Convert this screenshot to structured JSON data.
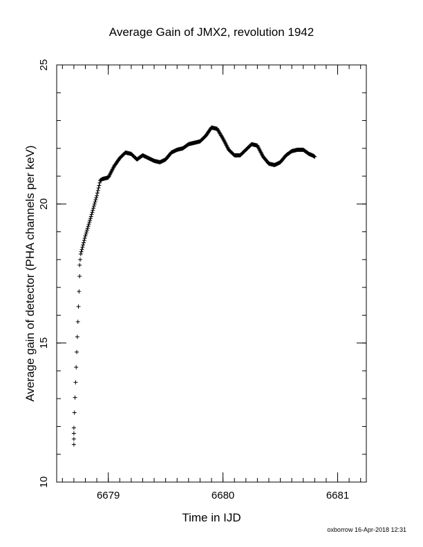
{
  "chart_data": {
    "type": "scatter",
    "title": "Average Gain of JMX2, revolution 1942",
    "xlabel": "Time in IJD",
    "ylabel": "Average gain of detector (PHA channels per keV)",
    "xlim": [
      6678.55,
      6681.25
    ],
    "ylim": [
      10,
      25
    ],
    "xticks": [
      6679,
      6680,
      6681
    ],
    "xtick_labels": [
      "6679",
      "6680",
      "6681"
    ],
    "xticks_minor_step": 0.1,
    "yticks": [
      10,
      15,
      20,
      25
    ],
    "ytick_labels": [
      "10",
      "15",
      "20",
      "25"
    ],
    "yticks_minor_step": 1,
    "grid": false,
    "marker": "plus",
    "x_points": [
      6678.7,
      6678.7,
      6678.7,
      6678.7,
      6678.75,
      6678.75,
      6678.76,
      6678.8,
      6678.85,
      6678.9,
      6678.93,
      6678.95,
      6679.0,
      6679.05,
      6679.1,
      6679.15,
      6679.2,
      6679.25,
      6679.3,
      6679.35,
      6679.4,
      6679.45,
      6679.5,
      6679.55,
      6679.6,
      6679.65,
      6679.7,
      6679.75,
      6679.8,
      6679.85,
      6679.9,
      6679.95,
      6680.0,
      6680.05,
      6680.1,
      6680.15,
      6680.2,
      6680.25,
      6680.3,
      6680.35,
      6680.4,
      6680.45,
      6680.5,
      6680.55,
      6680.6,
      6680.65,
      6680.7,
      6680.75,
      6680.78,
      6680.8
    ],
    "y_points": [
      11.35,
      11.55,
      11.75,
      11.95,
      17.4,
      17.8,
      18.2,
      18.85,
      19.55,
      20.3,
      20.85,
      20.9,
      20.95,
      21.35,
      21.65,
      21.85,
      21.8,
      21.6,
      21.75,
      21.65,
      21.55,
      21.5,
      21.6,
      21.85,
      21.95,
      22.0,
      22.15,
      22.2,
      22.25,
      22.45,
      22.75,
      22.7,
      22.35,
      21.95,
      21.75,
      21.75,
      21.95,
      22.15,
      22.1,
      21.7,
      21.45,
      21.4,
      21.5,
      21.75,
      21.9,
      21.95,
      21.95,
      21.8,
      21.75,
      21.7
    ]
  },
  "footer": "oxborrow 16-Apr-2018 12:31"
}
